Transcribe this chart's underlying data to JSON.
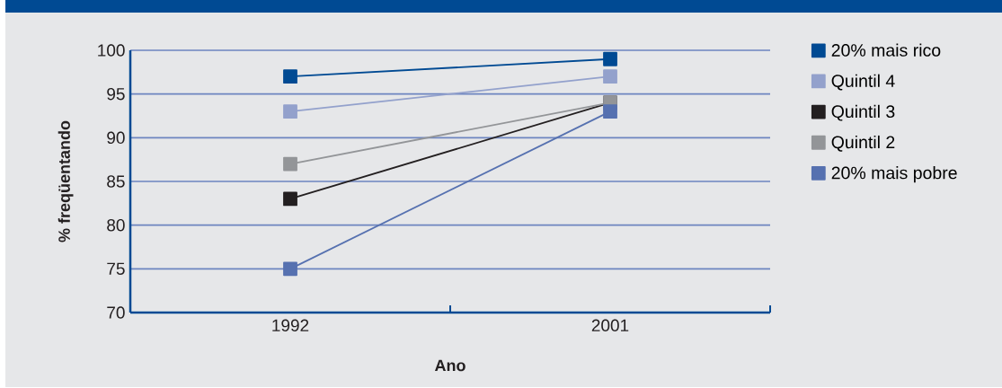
{
  "chart_data": {
    "type": "line",
    "xlabel": "Ano",
    "ylabel": "% freqüentando",
    "categories": [
      "1992",
      "2001"
    ],
    "series": [
      {
        "name": "20% mais rico",
        "color": "#004a93",
        "values": [
          97,
          99
        ]
      },
      {
        "name": "Quintil 4",
        "color": "#93a1cc",
        "values": [
          93,
          97
        ]
      },
      {
        "name": "Quintil 3",
        "color": "#231f20",
        "values": [
          83,
          94
        ]
      },
      {
        "name": "Quintil 2",
        "color": "#939598",
        "values": [
          87,
          94
        ]
      },
      {
        "name": "20% mais pobre",
        "color": "#5671b0",
        "values": [
          75,
          93
        ]
      }
    ],
    "ylim": [
      70,
      100
    ],
    "yticks": [
      70,
      75,
      80,
      85,
      90,
      95,
      100
    ],
    "grid": "y",
    "legend": "top right",
    "marker": "square",
    "line_style": "solid"
  }
}
